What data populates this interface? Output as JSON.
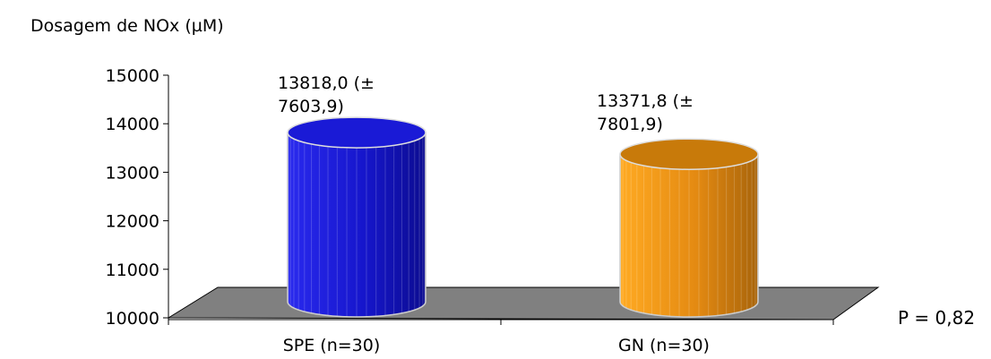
{
  "chart_data": {
    "type": "bar",
    "style": "3d-cylinder",
    "ylabel": "Dosagem de NOx (µM)",
    "ylim": [
      10000,
      15000
    ],
    "yticks": [
      10000,
      11000,
      12000,
      13000,
      14000,
      15000
    ],
    "categories": [
      "SPE (n=30)",
      "GN (n=30)"
    ],
    "values": [
      13818.0,
      13371.8
    ],
    "data_labels": [
      [
        "13818,0 (±",
        "7603,9)"
      ],
      [
        "13371,8 (±",
        "7801,9)"
      ]
    ],
    "colors": [
      "#1a1ad6",
      "#f59a10"
    ],
    "floor_color": "#808080",
    "annotation": "P = 0,82"
  }
}
